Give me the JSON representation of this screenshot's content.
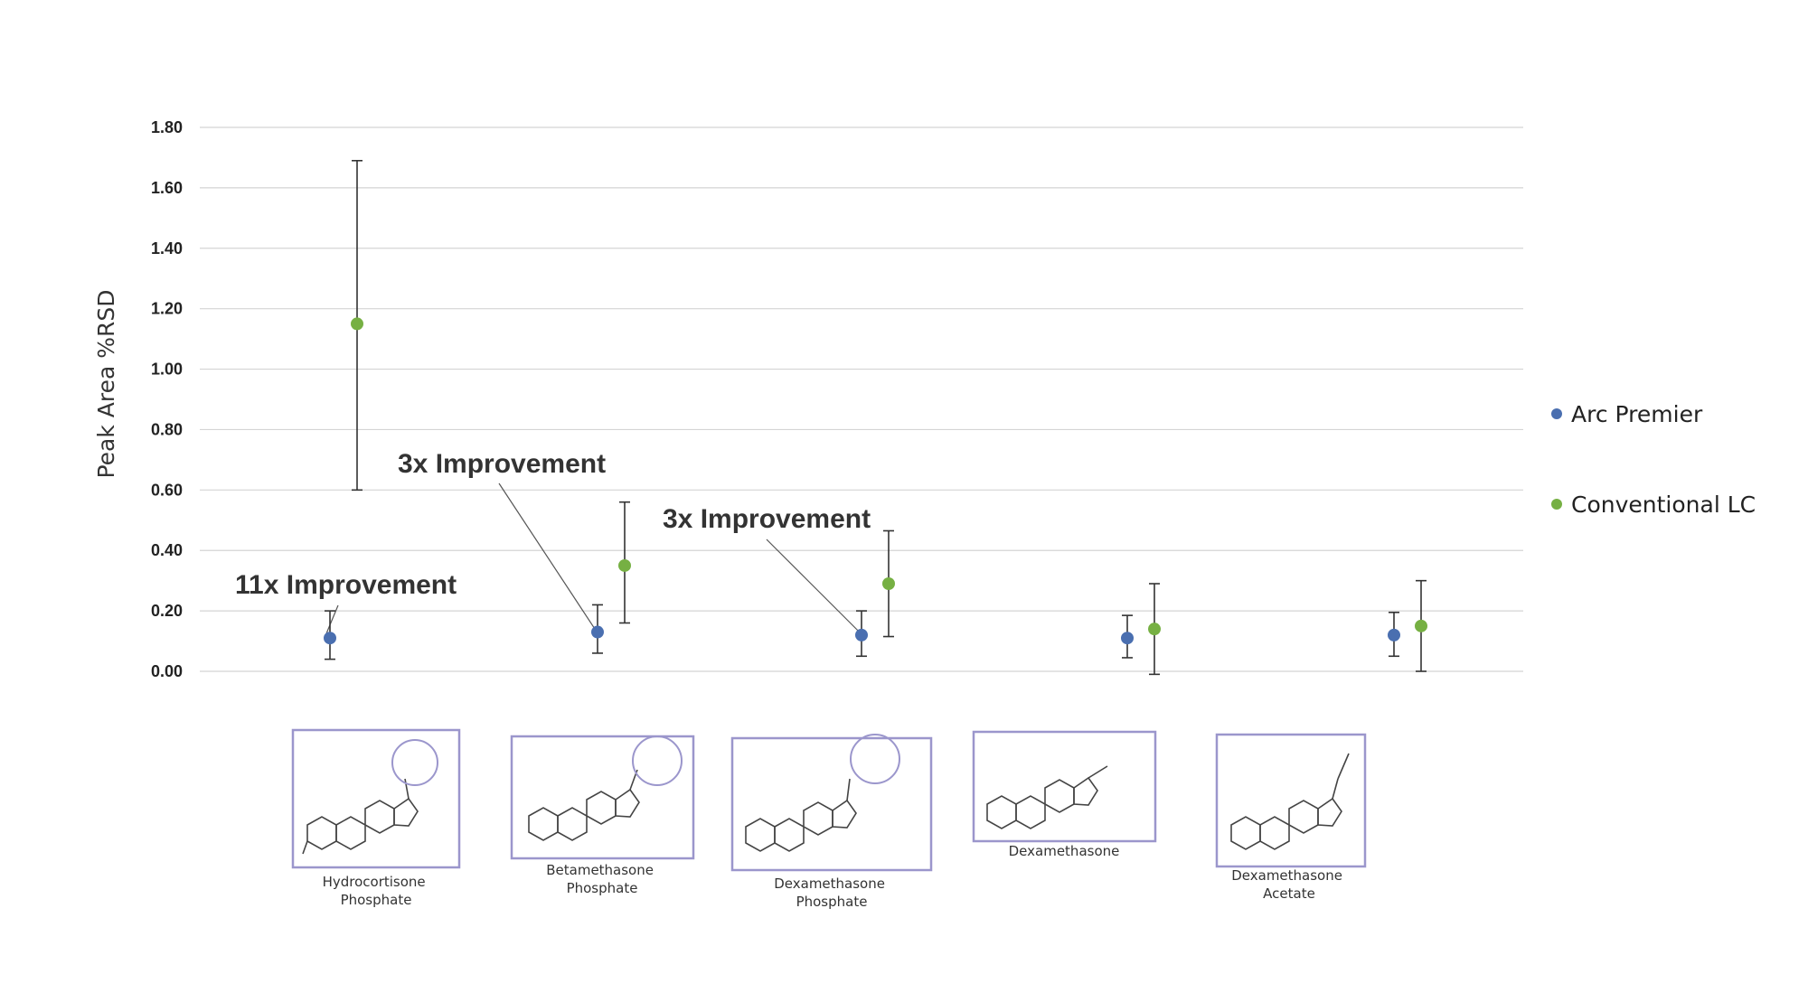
{
  "chart_data": {
    "type": "scatter",
    "ylabel": "Peak Area %RSD",
    "xlabel": "",
    "ylim": [
      0,
      1.8
    ],
    "yticks": [
      "0.00",
      "0.20",
      "0.40",
      "0.60",
      "0.80",
      "1.00",
      "1.20",
      "1.40",
      "1.60",
      "1.80"
    ],
    "grid": true,
    "legend_position": "right",
    "categories": [
      "Hydrocortisone Phosphate",
      "Betamethasone Phosphate",
      "Dexamethasone Phosphate",
      "Dexamethasone",
      "Dexamethasone Acetate"
    ],
    "series": [
      {
        "name": "Arc Premier",
        "color": "#4a6fb0",
        "values": [
          0.11,
          0.13,
          0.12,
          0.11,
          0.12
        ],
        "error_low": [
          0.04,
          0.06,
          0.05,
          0.045,
          0.05
        ],
        "error_high": [
          0.2,
          0.22,
          0.2,
          0.185,
          0.195
        ]
      },
      {
        "name": "Conventional LC",
        "color": "#76b043",
        "values": [
          1.15,
          0.35,
          0.29,
          0.14,
          0.15
        ],
        "error_low": [
          0.6,
          0.16,
          0.115,
          -0.01,
          0.0
        ],
        "error_high": [
          1.69,
          0.56,
          0.465,
          0.29,
          0.3
        ]
      }
    ],
    "annotations": [
      {
        "text": "11x Improvement",
        "category_index": 0
      },
      {
        "text": "3x Improvement",
        "category_index": 1
      },
      {
        "text": "3x Improvement",
        "category_index": 2
      }
    ]
  },
  "structures": [
    {
      "line1": "Hydrocortisone",
      "line2": "Phosphate",
      "icon": "hydrocortisone-phosphate-structure"
    },
    {
      "line1": "Betamethasone",
      "line2": "Phosphate",
      "icon": "betamethasone-phosphate-structure"
    },
    {
      "line1": "Dexamethasone",
      "line2": "Phosphate",
      "icon": "dexamethasone-phosphate-structure"
    },
    {
      "line1": "Dexamethasone",
      "line2": "",
      "icon": "dexamethasone-structure"
    },
    {
      "line1": "Dexamethasone",
      "line2": "Acetate",
      "icon": "dexamethasone-acetate-structure"
    }
  ]
}
